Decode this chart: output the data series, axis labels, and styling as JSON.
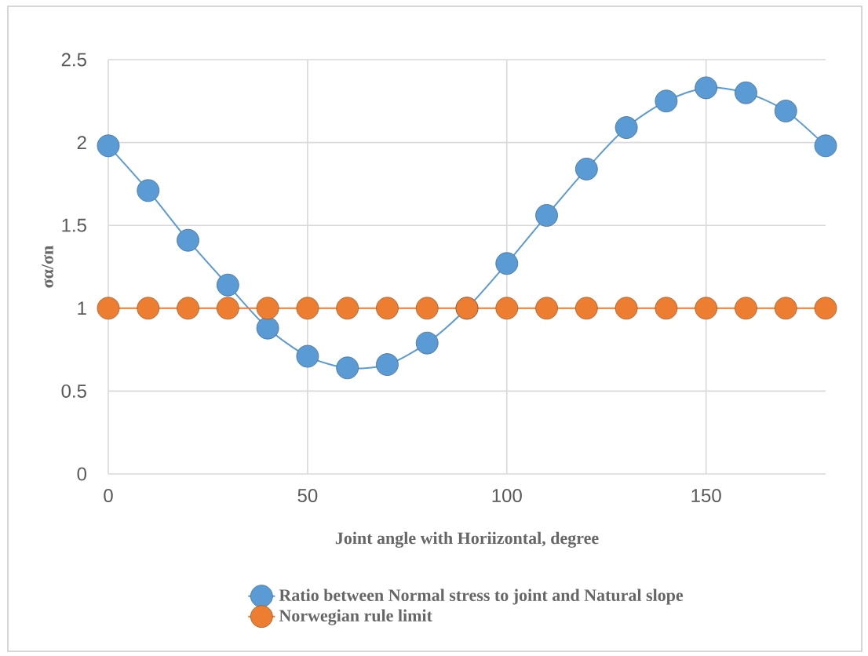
{
  "chart_data": {
    "type": "line",
    "xlabel": "Joint angle with Horiizontal, degree",
    "ylabel": "σα/σn",
    "x": [
      0,
      10,
      20,
      30,
      40,
      50,
      60,
      70,
      80,
      90,
      100,
      110,
      120,
      130,
      140,
      150,
      160,
      170,
      180
    ],
    "series": [
      {
        "name": "Ratio between Normal stress to joint and Natural slope",
        "color": "#5b9bd5",
        "values": [
          1.98,
          1.71,
          1.41,
          1.14,
          0.88,
          0.71,
          0.64,
          0.66,
          0.79,
          1.0,
          1.27,
          1.56,
          1.84,
          2.09,
          2.25,
          2.33,
          2.3,
          2.19,
          1.98
        ]
      },
      {
        "name": "Norwegian rule limit",
        "color": "#ed7d31",
        "values": [
          1,
          1,
          1,
          1,
          1,
          1,
          1,
          1,
          1,
          1,
          1,
          1,
          1,
          1,
          1,
          1,
          1,
          1,
          1
        ]
      }
    ],
    "xlim": [
      0,
      180
    ],
    "xticks": [
      0,
      50,
      100,
      150
    ],
    "ylim": [
      0,
      2.5
    ],
    "yticks": [
      0,
      0.5,
      1,
      1.5,
      2,
      2.5
    ],
    "grid": true,
    "legend": "bottom",
    "marker": "circle",
    "line_style": "solid"
  }
}
